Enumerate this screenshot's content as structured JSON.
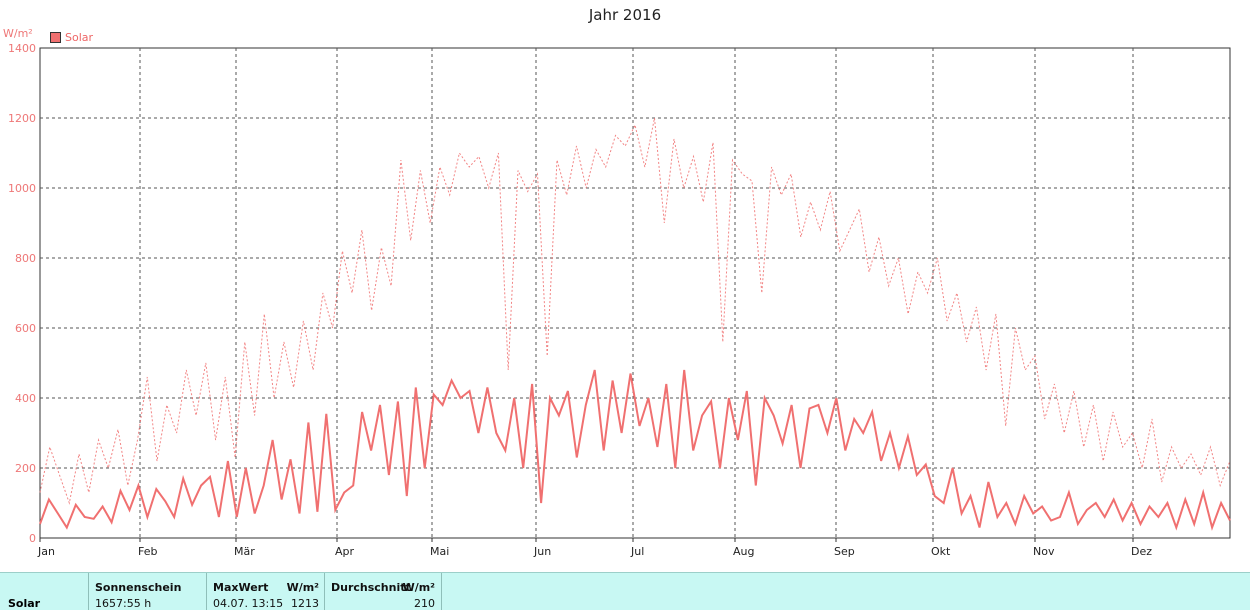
{
  "chart_data": {
    "type": "line",
    "title": "Jahr 2016",
    "ylabel": "W/m²",
    "ylim": [
      0,
      1400
    ],
    "yticks": [
      "0",
      "200",
      "400",
      "600",
      "800",
      "1000",
      "1200",
      "1400"
    ],
    "xticks": [
      "Jan",
      "Feb",
      "Mär",
      "Apr",
      "Mai",
      "Jun",
      "Jul",
      "Aug",
      "Sep",
      "Okt",
      "Nov",
      "Dez"
    ],
    "grid": true,
    "legend_position": "top-left",
    "colors": {
      "series": "#f07070",
      "grid": "#555555"
    },
    "series": [
      {
        "name": "Solar",
        "values": [
          40,
          110,
          70,
          30,
          95,
          60,
          55,
          90,
          45,
          135,
          80,
          150,
          60,
          140,
          105,
          60,
          170,
          95,
          150,
          175,
          60,
          220,
          60,
          200,
          70,
          150,
          280,
          110,
          225,
          70,
          330,
          75,
          355,
          80,
          130,
          150,
          360,
          250,
          380,
          180,
          390,
          120,
          430,
          200,
          410,
          380,
          450,
          400,
          420,
          300,
          430,
          300,
          250,
          400,
          200,
          440,
          100,
          400,
          350,
          420,
          230,
          380,
          480,
          250,
          450,
          300,
          470,
          320,
          400,
          260,
          440,
          200,
          480,
          250,
          350,
          390,
          200,
          400,
          280,
          420,
          150,
          400,
          350,
          270,
          380,
          200,
          370,
          380,
          300,
          400,
          250,
          340,
          300,
          360,
          220,
          300,
          200,
          290,
          180,
          210,
          120,
          100,
          200,
          70,
          120,
          30,
          160,
          60,
          100,
          40,
          120,
          70,
          90,
          50,
          60,
          130,
          40,
          80,
          100,
          60,
          110,
          50,
          100,
          40,
          90,
          60,
          100,
          30,
          110,
          40,
          130,
          30,
          100,
          50
        ]
      },
      {
        "name": "",
        "style": "dotted",
        "values": [
          130,
          260,
          180,
          100,
          240,
          130,
          280,
          200,
          310,
          150,
          280,
          460,
          220,
          380,
          300,
          480,
          350,
          500,
          280,
          460,
          230,
          560,
          350,
          640,
          400,
          560,
          430,
          620,
          480,
          700,
          600,
          820,
          700,
          880,
          650,
          830,
          720,
          1080,
          850,
          1050,
          900,
          1060,
          980,
          1100,
          1060,
          1090,
          1000,
          1100,
          480,
          1050,
          990,
          1040,
          520,
          1080,
          980,
          1120,
          1000,
          1110,
          1060,
          1150,
          1120,
          1180,
          1060,
          1200,
          900,
          1140,
          1000,
          1090,
          960,
          1130,
          560,
          1080,
          1040,
          1020,
          700,
          1060,
          980,
          1040,
          860,
          960,
          880,
          990,
          820,
          880,
          940,
          760,
          860,
          720,
          800,
          640,
          760,
          700,
          800,
          620,
          700,
          560,
          660,
          480,
          640,
          320,
          600,
          480,
          520,
          340,
          440,
          300,
          420,
          260,
          380,
          220,
          360,
          260,
          300,
          200,
          340,
          160,
          260,
          200,
          240,
          180,
          260,
          150,
          220
        ]
      }
    ]
  },
  "footer": {
    "row_label": "Solar",
    "sonnenschein_header": "Sonnenschein",
    "sonnenschein_value": "1657:55 h",
    "maxwert_header": "MaxWert",
    "maxwert_unit": "W/m²",
    "maxwert_date": "04.07.  13:15",
    "maxwert_value": "1213",
    "durchschnitt_header": "Durchschnitt",
    "durchschnitt_unit": "W/m²",
    "durchschnitt_value": "210"
  }
}
